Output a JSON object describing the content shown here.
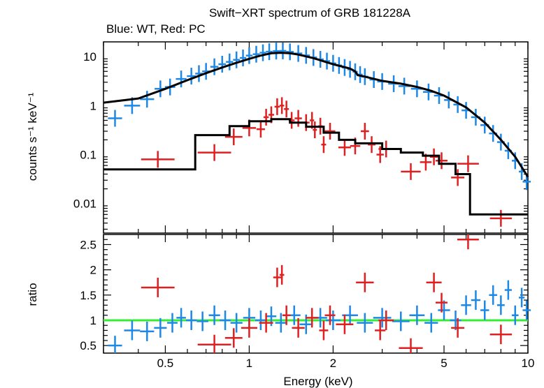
{
  "chart_data": {
    "type": "scatter",
    "title": "Swift−XRT spectrum of GRB 181228A",
    "subtitle": "Blue: WT, Red: PC",
    "xlabel": "Energy (keV)",
    "xscale": "log",
    "xlim": [
      0.3,
      10
    ],
    "x_ticks": [
      {
        "value": 0.5,
        "label": "0.5"
      },
      {
        "value": 1,
        "label": "1"
      },
      {
        "value": 2,
        "label": "2"
      },
      {
        "value": 5,
        "label": "5"
      },
      {
        "value": 10,
        "label": "10"
      }
    ],
    "panels": [
      {
        "name": "spectrum",
        "ylabel": "counts s⁻¹ keV⁻¹",
        "yscale": "log",
        "ylim": [
          0.0025,
          20
        ],
        "y_ticks": [
          {
            "value": 10,
            "label": "10"
          },
          {
            "value": 1,
            "label": "1"
          },
          {
            "value": 0.1,
            "label": "0.1"
          },
          {
            "value": 0.01,
            "label": "0.01"
          }
        ],
        "series": [
          {
            "color": "#1e88e5",
            "kind": "data",
            "points": [
              [
                0.33,
                0.55
              ],
              [
                0.38,
                1.0
              ],
              [
                0.43,
                1.35
              ],
              [
                0.48,
                2.2
              ],
              [
                0.52,
                2.4
              ],
              [
                0.57,
                3.5
              ],
              [
                0.62,
                4.0
              ],
              [
                0.66,
                4.5
              ],
              [
                0.7,
                5.0
              ],
              [
                0.75,
                6.2
              ],
              [
                0.8,
                7.0
              ],
              [
                0.85,
                7.8
              ],
              [
                0.9,
                8.6
              ],
              [
                0.95,
                9.4
              ],
              [
                1.0,
                10.5
              ],
              [
                1.06,
                11.2
              ],
              [
                1.12,
                12.0
              ],
              [
                1.18,
                12.6
              ],
              [
                1.25,
                13.0
              ],
              [
                1.32,
                13.1
              ],
              [
                1.4,
                12.5
              ],
              [
                1.5,
                11.6
              ],
              [
                1.6,
                10.6
              ],
              [
                1.7,
                9.6
              ],
              [
                1.8,
                8.8
              ],
              [
                1.9,
                8.1
              ],
              [
                2.0,
                7.3
              ],
              [
                2.1,
                6.6
              ],
              [
                2.2,
                6.0
              ],
              [
                2.3,
                5.5
              ],
              [
                2.4,
                4.9
              ],
              [
                2.5,
                4.3
              ],
              [
                2.6,
                3.9
              ],
              [
                2.8,
                3.4
              ],
              [
                3.0,
                3.1
              ],
              [
                3.3,
                2.8
              ],
              [
                3.6,
                2.5
              ],
              [
                4.0,
                2.2
              ],
              [
                4.4,
                1.9
              ],
              [
                4.8,
                1.6
              ],
              [
                5.2,
                1.3
              ],
              [
                5.6,
                1.05
              ],
              [
                6.0,
                0.8
              ],
              [
                6.5,
                0.58
              ],
              [
                7.0,
                0.4
              ],
              [
                7.5,
                0.27
              ],
              [
                8.0,
                0.18
              ],
              [
                8.5,
                0.12
              ],
              [
                9.0,
                0.075
              ],
              [
                9.5,
                0.045
              ],
              [
                9.9,
                0.028
              ]
            ]
          },
          {
            "color": "#000000",
            "kind": "model",
            "points": [
              [
                0.3,
                1.15
              ],
              [
                0.4,
                1.4
              ],
              [
                0.5,
                2.2
              ],
              [
                0.6,
                3.3
              ],
              [
                0.7,
                4.6
              ],
              [
                0.8,
                6.0
              ],
              [
                0.9,
                7.5
              ],
              [
                1.0,
                9.0
              ],
              [
                1.1,
                10.5
              ],
              [
                1.2,
                11.7
              ],
              [
                1.3,
                12.0
              ],
              [
                1.4,
                11.7
              ],
              [
                1.5,
                11.0
              ],
              [
                1.7,
                9.3
              ],
              [
                2.0,
                7.0
              ],
              [
                2.3,
                5.7
              ],
              [
                2.4,
                5.0
              ],
              [
                2.45,
                4.2
              ],
              [
                2.6,
                3.9
              ],
              [
                3.0,
                3.2
              ],
              [
                3.5,
                2.8
              ],
              [
                4.0,
                2.4
              ],
              [
                4.5,
                2.0
              ],
              [
                5.0,
                1.6
              ],
              [
                6.0,
                0.92
              ],
              [
                7.0,
                0.45
              ],
              [
                8.0,
                0.2
              ],
              [
                9.0,
                0.09
              ],
              [
                10.0,
                0.035
              ]
            ]
          },
          {
            "color": "#e02020",
            "kind": "data",
            "points": [
              [
                0.47,
                0.08
              ],
              [
                0.75,
                0.11
              ],
              [
                0.88,
                0.23
              ],
              [
                1.0,
                0.35
              ],
              [
                1.1,
                0.33
              ],
              [
                1.15,
                0.58
              ],
              [
                1.2,
                0.65
              ],
              [
                1.26,
                0.95
              ],
              [
                1.31,
                1.0
              ],
              [
                1.36,
                0.85
              ],
              [
                1.42,
                0.5
              ],
              [
                1.5,
                0.55
              ],
              [
                1.6,
                0.45
              ],
              [
                1.68,
                0.5
              ],
              [
                1.72,
                0.32
              ],
              [
                1.8,
                0.38
              ],
              [
                1.85,
                0.16
              ],
              [
                1.95,
                0.3
              ],
              [
                2.2,
                0.14
              ],
              [
                2.4,
                0.15
              ],
              [
                2.6,
                0.3
              ],
              [
                2.75,
                0.16
              ],
              [
                2.95,
                0.1
              ],
              [
                3.1,
                0.13
              ],
              [
                3.8,
                0.045
              ],
              [
                4.3,
                0.07
              ],
              [
                4.6,
                0.09
              ],
              [
                4.9,
                0.075
              ],
              [
                5.6,
                0.034
              ],
              [
                6.1,
                0.065
              ],
              [
                8.0,
                0.005
              ]
            ]
          },
          {
            "color": "#000000",
            "kind": "model",
            "points": [
              [
                0.3,
                0.05
              ],
              [
                0.64,
                0.05
              ],
              [
                0.64,
                0.25
              ],
              [
                0.85,
                0.25
              ],
              [
                0.85,
                0.38
              ],
              [
                1.0,
                0.38
              ],
              [
                1.0,
                0.48
              ],
              [
                1.2,
                0.48
              ],
              [
                1.2,
                0.53
              ],
              [
                1.4,
                0.53
              ],
              [
                1.4,
                0.45
              ],
              [
                1.6,
                0.45
              ],
              [
                1.6,
                0.37
              ],
              [
                1.85,
                0.37
              ],
              [
                1.85,
                0.28
              ],
              [
                2.1,
                0.28
              ],
              [
                2.1,
                0.2
              ],
              [
                2.4,
                0.2
              ],
              [
                2.4,
                0.17
              ],
              [
                3.0,
                0.17
              ],
              [
                3.0,
                0.13
              ],
              [
                3.5,
                0.13
              ],
              [
                3.5,
                0.11
              ],
              [
                4.2,
                0.11
              ],
              [
                4.2,
                0.095
              ],
              [
                4.8,
                0.095
              ],
              [
                4.8,
                0.065
              ],
              [
                5.5,
                0.065
              ],
              [
                5.5,
                0.04
              ],
              [
                6.2,
                0.04
              ],
              [
                6.2,
                0.006
              ],
              [
                10.0,
                0.006
              ]
            ]
          }
        ]
      },
      {
        "name": "ratio",
        "ylabel": "ratio",
        "yscale": "linear",
        "ylim": [
          0.35,
          2.7
        ],
        "y_ticks": [
          {
            "value": 2.5,
            "label": "2.5"
          },
          {
            "value": 2,
            "label": "2"
          },
          {
            "value": 1.5,
            "label": "1.5"
          },
          {
            "value": 1,
            "label": "1"
          },
          {
            "value": 0.5,
            "label": "0.5"
          }
        ],
        "reference_line": {
          "value": 1,
          "color": "#33ee33"
        },
        "series": [
          {
            "color": "#1e88e5",
            "kind": "data",
            "points": [
              [
                0.33,
                0.5
              ],
              [
                0.38,
                0.8
              ],
              [
                0.43,
                0.78
              ],
              [
                0.48,
                0.85
              ],
              [
                0.53,
                0.95
              ],
              [
                0.57,
                1.05
              ],
              [
                0.62,
                1.0
              ],
              [
                0.68,
                0.98
              ],
              [
                0.75,
                1.1
              ],
              [
                0.82,
                1.0
              ],
              [
                0.9,
                0.95
              ],
              [
                1.0,
                1.05
              ],
              [
                1.1,
                1.0
              ],
              [
                1.2,
                1.08
              ],
              [
                1.3,
                0.95
              ],
              [
                1.45,
                1.1
              ],
              [
                1.6,
                0.92
              ],
              [
                1.8,
                1.05
              ],
              [
                2.0,
                1.0
              ],
              [
                2.3,
                1.1
              ],
              [
                2.6,
                0.95
              ],
              [
                3.0,
                1.05
              ],
              [
                3.5,
                0.98
              ],
              [
                4.0,
                1.1
              ],
              [
                4.5,
                0.95
              ],
              [
                5.0,
                1.2
              ],
              [
                5.5,
                1.0
              ],
              [
                6.0,
                1.3
              ],
              [
                6.5,
                1.4
              ],
              [
                7.0,
                1.2
              ],
              [
                7.5,
                1.5
              ],
              [
                8.0,
                1.3
              ],
              [
                8.5,
                1.6
              ],
              [
                9.0,
                1.1
              ],
              [
                9.5,
                1.45
              ],
              [
                9.9,
                1.2
              ]
            ]
          },
          {
            "color": "#e02020",
            "kind": "data",
            "points": [
              [
                0.47,
                1.65
              ],
              [
                0.75,
                0.52
              ],
              [
                0.88,
                0.65
              ],
              [
                1.0,
                0.85
              ],
              [
                1.15,
                0.95
              ],
              [
                1.26,
                1.85
              ],
              [
                1.31,
                1.9
              ],
              [
                1.36,
                1.1
              ],
              [
                1.5,
                0.85
              ],
              [
                1.68,
                1.05
              ],
              [
                1.85,
                0.8
              ],
              [
                1.95,
                1.1
              ],
              [
                2.2,
                0.92
              ],
              [
                2.6,
                1.75
              ],
              [
                2.95,
                0.8
              ],
              [
                3.1,
                1.0
              ],
              [
                3.8,
                0.45
              ],
              [
                4.6,
                1.75
              ],
              [
                4.9,
                1.35
              ],
              [
                5.6,
                0.85
              ],
              [
                6.1,
                2.6
              ],
              [
                8.0,
                0.72
              ]
            ]
          }
        ]
      }
    ]
  }
}
